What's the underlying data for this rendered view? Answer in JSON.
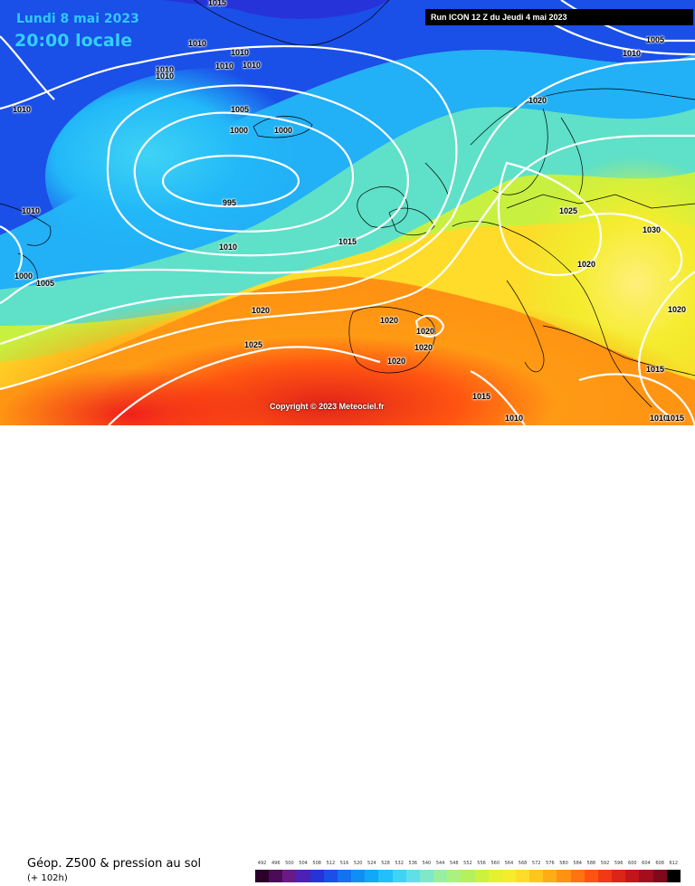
{
  "header": {
    "date": "Lundi 8 mai 2023",
    "local_time": "20:00 locale",
    "run_info": "Run ICON 12 Z du Jeudi 4 mai 2023"
  },
  "copyright": "Copyright © 2023 Meteociel.fr",
  "footer": {
    "title": "Géop. Z500 & pression au sol",
    "subtitle": "(+ 102h)"
  },
  "colors": {
    "land_border": "#000000",
    "isobar": "#ffffff"
  },
  "isobar_labels": [
    {
      "t": "1015"
    },
    {
      "t": "1010"
    },
    {
      "t": "1010"
    },
    {
      "t": "1010"
    },
    {
      "t": "1010"
    },
    {
      "t": "1010"
    },
    {
      "t": "1010"
    },
    {
      "t": "1010"
    },
    {
      "t": "1005"
    },
    {
      "t": "1000"
    },
    {
      "t": "1000"
    },
    {
      "t": "995"
    },
    {
      "t": "1010"
    },
    {
      "t": "1010"
    },
    {
      "t": "1000"
    },
    {
      "t": "1005"
    },
    {
      "t": "1015"
    },
    {
      "t": "1020"
    },
    {
      "t": "1025"
    },
    {
      "t": "1020"
    },
    {
      "t": "1020"
    },
    {
      "t": "1020"
    },
    {
      "t": "1020"
    },
    {
      "t": "1020"
    },
    {
      "t": "1025"
    },
    {
      "t": "1030"
    },
    {
      "t": "1020"
    },
    {
      "t": "1020"
    },
    {
      "t": "1015"
    },
    {
      "t": "1015"
    },
    {
      "t": "1010"
    },
    {
      "t": "1010"
    },
    {
      "t": "1005"
    },
    {
      "t": "1010"
    },
    {
      "t": "1015"
    }
  ],
  "legend_scale": {
    "values": [
      "492",
      "496",
      "500",
      "504",
      "508",
      "512",
      "516",
      "520",
      "524",
      "528",
      "532",
      "536",
      "540",
      "544",
      "548",
      "552",
      "556",
      "560",
      "564",
      "568",
      "572",
      "576",
      "580",
      "584",
      "588",
      "592",
      "596",
      "600",
      "604",
      "608",
      "612"
    ],
    "colors": [
      "#2a002a",
      "#4b0b57",
      "#6a1a86",
      "#4b22b5",
      "#2633d8",
      "#1a4fe8",
      "#1272f0",
      "#0f8ff5",
      "#12a8f8",
      "#22c0fa",
      "#3fd3f5",
      "#5fe0e8",
      "#7fe8c8",
      "#98ef9f",
      "#a9f27f",
      "#b5f15d",
      "#cdf23e",
      "#e3f12e",
      "#f5ec2e",
      "#ffdc2a",
      "#ffc61f",
      "#ffad17",
      "#ff9212",
      "#ff7410",
      "#ff5411",
      "#f13a14",
      "#dd2418",
      "#c2161b",
      "#a30d1d",
      "#7f081b",
      "#000000"
    ]
  }
}
